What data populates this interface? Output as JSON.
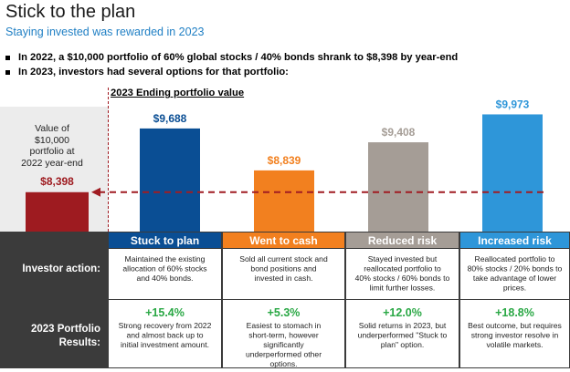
{
  "header": {
    "title": "Stick to the plan",
    "subtitle": "Staying invested was rewarded in 2023"
  },
  "bullets": [
    "In 2022, a $10,000 portfolio of 60% global stocks / 40% bonds shrank to $8,398 by year-end",
    "In 2023, investors had several options for that portfolio:"
  ],
  "left_note": {
    "lines": [
      "Value of",
      "$10,000",
      "portfolio at",
      "2022 year-end"
    ]
  },
  "chart_data": {
    "type": "bar",
    "title": "2023 Ending portfolio value",
    "baseline": {
      "label": "$8,398",
      "value": 8398,
      "color": "#9e1b20"
    },
    "categories": [
      "Stuck to plan",
      "Went to cash",
      "Reduced risk",
      "Increased risk"
    ],
    "values": [
      9688,
      8839,
      9408,
      9973
    ],
    "value_labels": [
      "$9,688",
      "$8,839",
      "$9,408",
      "$9,973"
    ],
    "colors": [
      "#0a4e94",
      "#f2801f",
      "#a59d96",
      "#2e96d9"
    ],
    "reference_line": {
      "value": 8398,
      "style": "dashed",
      "color": "#a01c22"
    }
  },
  "table": {
    "row_labels": [
      "Investor action:",
      "2023 Portfolio Results:"
    ],
    "columns": [
      {
        "header": "Stuck to plan",
        "color": "#0a4e94",
        "action": "Maintained the existing allocation of 60% stocks and 40% bonds.",
        "result_pct": "+15.4%",
        "result_text": "Strong recovery from 2022 and almost back up to initial investment amount."
      },
      {
        "header": "Went to cash",
        "color": "#f2801f",
        "action": "Sold all current stock and bond positions and invested in cash.",
        "result_pct": "+5.3%",
        "result_text": "Easiest to stomach in short-term, however significantly underperformed other options."
      },
      {
        "header": "Reduced risk",
        "color": "#a59d96",
        "action": "Stayed invested but reallocated portfolio to 40% stocks / 60% bonds to limit further losses.",
        "result_pct": "+12.0%",
        "result_text": "Solid returns in 2023, but underperformed \"Stuck to plan\" option."
      },
      {
        "header": "Increased risk",
        "color": "#2e96d9",
        "action": "Reallocated portfolio to 80% stocks / 20% bonds to take advantage of lower prices.",
        "result_pct": "+18.8%",
        "result_text": "Best outcome, but requires strong investor resolve in volatile markets."
      }
    ]
  }
}
